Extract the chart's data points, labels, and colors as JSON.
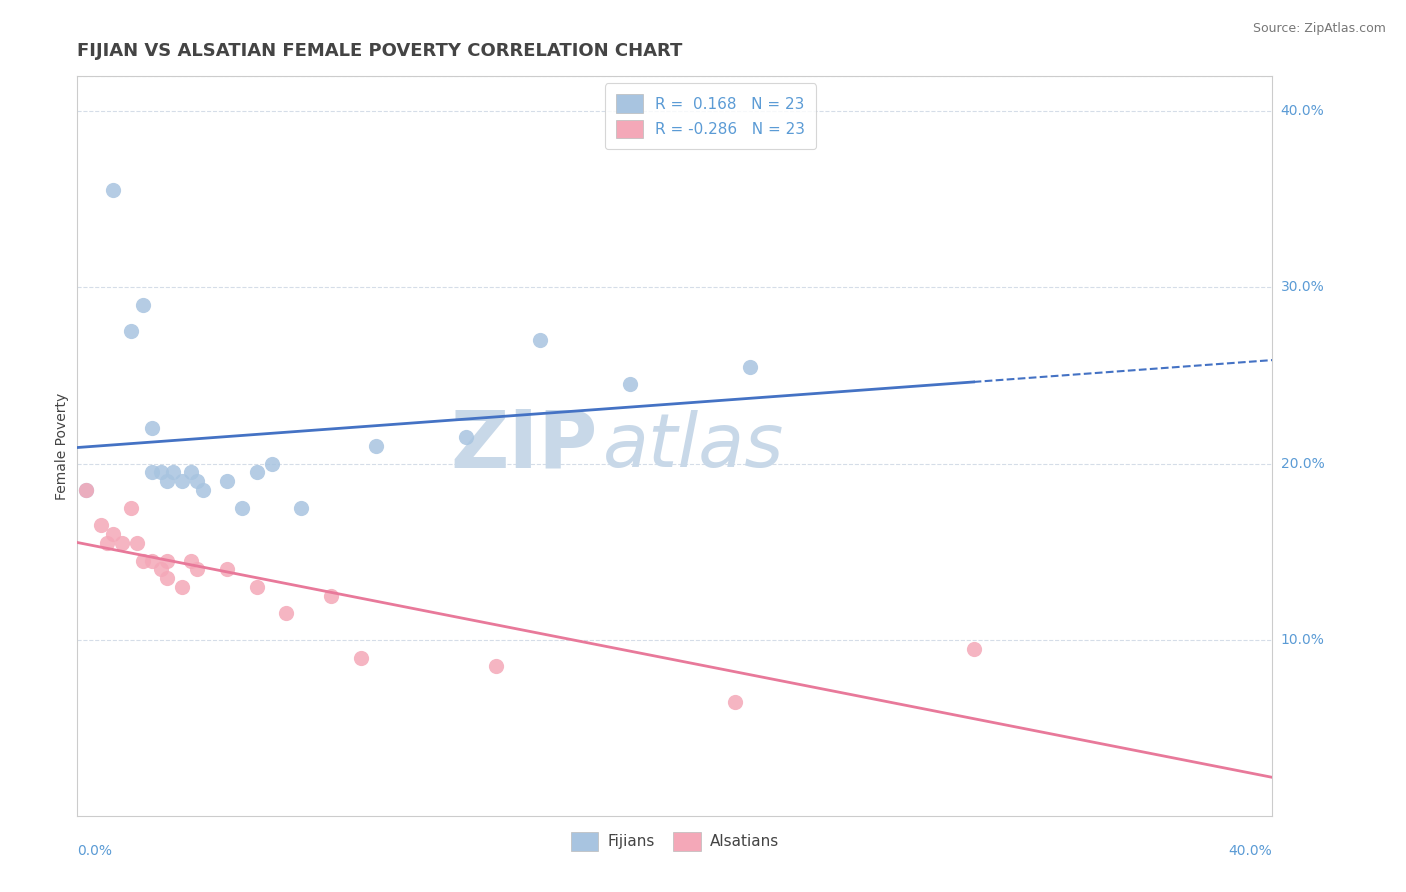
{
  "title": "FIJIAN VS ALSATIAN FEMALE POVERTY CORRELATION CHART",
  "source": "Source: ZipAtlas.com",
  "ylabel": "Female Poverty",
  "fijian_R": "0.168",
  "fijian_N": "23",
  "alsatian_R": "-0.286",
  "alsatian_N": "23",
  "fijian_color": "#a8c4e0",
  "alsatian_color": "#f4a8b8",
  "fijian_line_color": "#4472c4",
  "alsatian_line_color": "#e8799a",
  "watermark_color": "#c8d8e8",
  "xmin": 0.0,
  "xmax": 0.4,
  "ymin": 0.0,
  "ymax": 0.42,
  "background_color": "#ffffff",
  "grid_color": "#d5dde8",
  "title_color": "#444444",
  "axis_color": "#cccccc",
  "right_label_color": "#5b9bd5",
  "fijian_points": [
    [
      0.003,
      0.185
    ],
    [
      0.012,
      0.355
    ],
    [
      0.018,
      0.275
    ],
    [
      0.022,
      0.29
    ],
    [
      0.025,
      0.22
    ],
    [
      0.025,
      0.195
    ],
    [
      0.028,
      0.195
    ],
    [
      0.03,
      0.19
    ],
    [
      0.032,
      0.195
    ],
    [
      0.035,
      0.19
    ],
    [
      0.038,
      0.195
    ],
    [
      0.04,
      0.19
    ],
    [
      0.042,
      0.185
    ],
    [
      0.05,
      0.19
    ],
    [
      0.055,
      0.175
    ],
    [
      0.06,
      0.195
    ],
    [
      0.065,
      0.2
    ],
    [
      0.075,
      0.175
    ],
    [
      0.1,
      0.21
    ],
    [
      0.13,
      0.215
    ],
    [
      0.155,
      0.27
    ],
    [
      0.185,
      0.245
    ],
    [
      0.225,
      0.255
    ]
  ],
  "alsatian_points": [
    [
      0.003,
      0.185
    ],
    [
      0.008,
      0.165
    ],
    [
      0.01,
      0.155
    ],
    [
      0.012,
      0.16
    ],
    [
      0.015,
      0.155
    ],
    [
      0.018,
      0.175
    ],
    [
      0.02,
      0.155
    ],
    [
      0.022,
      0.145
    ],
    [
      0.025,
      0.145
    ],
    [
      0.028,
      0.14
    ],
    [
      0.03,
      0.145
    ],
    [
      0.03,
      0.135
    ],
    [
      0.035,
      0.13
    ],
    [
      0.038,
      0.145
    ],
    [
      0.04,
      0.14
    ],
    [
      0.05,
      0.14
    ],
    [
      0.06,
      0.13
    ],
    [
      0.07,
      0.115
    ],
    [
      0.085,
      0.125
    ],
    [
      0.095,
      0.09
    ],
    [
      0.14,
      0.085
    ],
    [
      0.22,
      0.065
    ],
    [
      0.3,
      0.095
    ]
  ]
}
